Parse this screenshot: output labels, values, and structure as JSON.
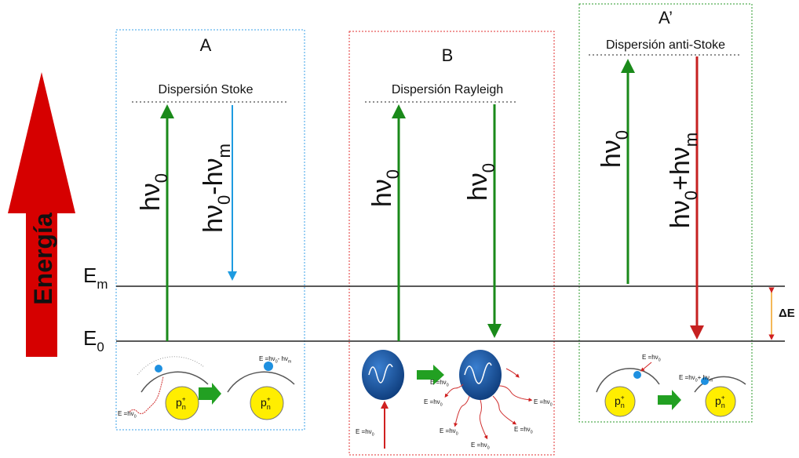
{
  "axis_label": "Energía",
  "levels": {
    "upper": [
      {
        "base": "E",
        "sub": "m"
      }
    ],
    "lower": [
      {
        "base": "E",
        "sub": "0"
      }
    ],
    "gap": "ΔE"
  },
  "panels": [
    {
      "letter": "A",
      "title": "Dispersión Stoke",
      "arrows": [
        [
          {
            "base": "hν",
            "sub": "0"
          }
        ],
        [
          {
            "base": "hν",
            "sub": "0"
          },
          {
            "base": "-hν",
            "sub": "m"
          }
        ]
      ],
      "notes": [
        [
          {
            "base": "E =hν",
            "sub": "0"
          }
        ],
        [
          {
            "base": "E =hν",
            "sub": "0"
          },
          {
            "base": "- hν",
            "sub": "m"
          }
        ]
      ],
      "nuclei": [
        [
          {
            "base": "p",
            "sup": "+",
            "sub": "n"
          }
        ],
        [
          {
            "base": "p",
            "sup": "+",
            "sub": "n"
          }
        ]
      ]
    },
    {
      "letter": "B",
      "title": "Dispersión Rayleigh",
      "arrows": [
        [
          {
            "base": "hν",
            "sub": "0"
          }
        ],
        [
          {
            "base": "hν",
            "sub": "0"
          }
        ]
      ],
      "notes": [
        [
          {
            "base": "E =hν",
            "sub": "0"
          }
        ],
        [
          {
            "base": "E =hν",
            "sub": "0"
          }
        ],
        [
          {
            "base": "E =hν",
            "sub": "0"
          }
        ],
        [
          {
            "base": "E =hν",
            "sub": "0"
          }
        ],
        [
          {
            "base": "E =hν",
            "sub": "0"
          }
        ],
        [
          {
            "base": "E =hν",
            "sub": "0"
          }
        ],
        [
          {
            "base": "E =hν",
            "sub": "0"
          }
        ]
      ]
    },
    {
      "letter": "A’",
      "title": "Dispersión anti-Stoke",
      "arrows": [
        [
          {
            "base": "hν",
            "sub": "0"
          }
        ],
        [
          {
            "base": "hν",
            "sub": "0"
          },
          {
            "base": "+hν",
            "sub": "m"
          }
        ]
      ],
      "notes": [
        [
          {
            "base": "E =hν",
            "sub": "0"
          }
        ],
        [
          {
            "base": "E =hν",
            "sub": "0"
          },
          {
            "base": "+ hν",
            "sub": "m"
          }
        ]
      ],
      "nuclei": [
        [
          {
            "base": "p",
            "sup": "+",
            "sub": "n"
          }
        ],
        [
          {
            "base": "p",
            "sup": "+",
            "sub": "n"
          }
        ]
      ]
    }
  ]
}
